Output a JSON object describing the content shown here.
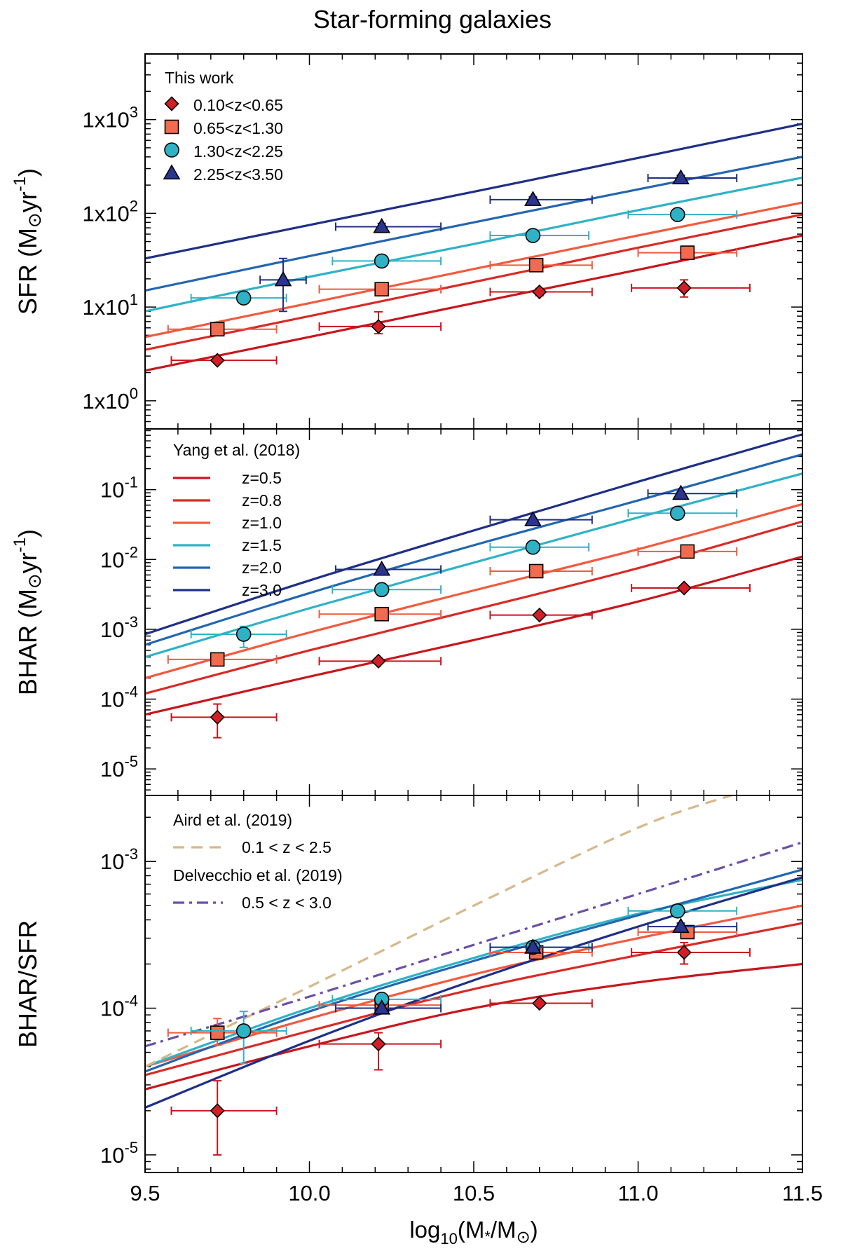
{
  "figure": {
    "title": "Star-forming galaxies",
    "xlabel_prefix": "log",
    "xlabel_sub": "10",
    "xlabel_rest": "(M",
    "xlabel_star": "*",
    "xlabel_mid": "/M",
    "xlabel_close": ")",
    "sun_symbol": "⊙",
    "colors": {
      "z1": "#c8161d",
      "z2": "#d92a26",
      "z3": "#f25a3e",
      "z4": "#2fb2c6",
      "z5": "#2266b0",
      "z6": "#1f2f86",
      "aird": "#d6b88a",
      "delvecchio": "#6a4fa8",
      "marker_z1": "#d21f26",
      "marker_z2": "#f26b4f",
      "marker_z3": "#2fb2c6",
      "marker_z4": "#2a3590"
    }
  },
  "chart_data": [
    {
      "type": "scatter",
      "panel": "top",
      "ylabel_main": "SFR (M",
      "ylabel_units": "yr",
      "ylabel_exp": "-1",
      "ylabel_close": ")",
      "xlim": [
        9.5,
        11.5
      ],
      "ylim_log10": [
        -0.3,
        3.7
      ],
      "yticks_log10": [
        0,
        1,
        2,
        3
      ],
      "ytick_labels": [
        {
          "base": "1x10",
          "exp": "0"
        },
        {
          "base": "1x10",
          "exp": "1"
        },
        {
          "base": "1x10",
          "exp": "2"
        },
        {
          "base": "1x10",
          "exp": "3"
        }
      ],
      "legend": {
        "title": "This work",
        "entries": [
          "0.10<z<0.65",
          "0.65<z<1.30",
          "1.30<z<2.25",
          "2.25<z<3.50"
        ]
      },
      "points": [
        {
          "series": "0.10<z<0.65",
          "marker": "diamond",
          "color_key": "marker_z1",
          "ecolor_key": "z1",
          "x": [
            9.72,
            10.21,
            10.7,
            11.14
          ],
          "xlo": [
            9.58,
            10.03,
            10.55,
            10.98
          ],
          "xhi": [
            9.9,
            10.4,
            10.86,
            11.34
          ],
          "y": [
            2.7,
            6.2,
            14.5,
            16.0
          ],
          "ylo": [
            2.55,
            5.2,
            13.2,
            12.8
          ],
          "yhi": [
            2.9,
            8.9,
            15.8,
            19.5
          ]
        },
        {
          "series": "0.65<z<1.30",
          "marker": "square",
          "color_key": "marker_z2",
          "ecolor_key": "z3",
          "x": [
            9.72,
            10.22,
            10.69,
            11.15
          ],
          "xlo": [
            9.57,
            10.03,
            10.55,
            11.0
          ],
          "xhi": [
            9.9,
            10.4,
            10.86,
            11.3
          ],
          "y": [
            5.8,
            15.5,
            28.0,
            38.0
          ],
          "ylo": [
            5.3,
            14.0,
            25.5,
            34.0
          ],
          "yhi": [
            6.3,
            17.0,
            30.5,
            42.0
          ]
        },
        {
          "series": "1.30<z<2.25",
          "marker": "circle",
          "color_key": "marker_z3",
          "ecolor_key": "z4",
          "x": [
            9.8,
            10.22,
            10.68,
            11.12
          ],
          "xlo": [
            9.64,
            10.07,
            10.55,
            10.97
          ],
          "xhi": [
            9.93,
            10.4,
            10.85,
            11.3
          ],
          "y": [
            12.5,
            31.0,
            58.0,
            97.0
          ],
          "ylo": [
            11.5,
            28.5,
            53.0,
            90.0
          ],
          "yhi": [
            13.5,
            33.5,
            63.0,
            104.0
          ]
        },
        {
          "series": "2.25<z<3.50",
          "marker": "triangle",
          "color_key": "marker_z4",
          "ecolor_key": "z6",
          "x": [
            9.92,
            10.22,
            10.68,
            11.13
          ],
          "xlo": [
            9.85,
            10.08,
            10.55,
            11.03
          ],
          "xhi": [
            9.99,
            10.4,
            10.86,
            11.3
          ],
          "y": [
            19.5,
            72.0,
            140.0,
            238.0
          ],
          "ylo": [
            9.0,
            66.0,
            130.0,
            222.0
          ],
          "yhi": [
            33.0,
            78.0,
            150.0,
            255.0
          ]
        }
      ],
      "lines": [
        {
          "color_key": "z1",
          "x": [
            9.5,
            10.0,
            10.5,
            11.0,
            11.5
          ],
          "y": [
            2.1,
            4.8,
            11.0,
            25.0,
            58.0
          ]
        },
        {
          "color_key": "z2",
          "x": [
            9.5,
            10.0,
            10.5,
            11.0,
            11.5
          ],
          "y": [
            3.5,
            8.0,
            18.5,
            43.0,
            97.0
          ]
        },
        {
          "color_key": "z3",
          "x": [
            9.5,
            10.0,
            10.5,
            11.0,
            11.5
          ],
          "y": [
            4.8,
            11.0,
            25.5,
            58.0,
            130.0
          ]
        },
        {
          "color_key": "z4",
          "x": [
            9.5,
            10.0,
            10.5,
            11.0,
            11.5
          ],
          "y": [
            9.0,
            21.0,
            47.0,
            108.0,
            240.0
          ]
        },
        {
          "color_key": "z5",
          "x": [
            9.5,
            10.0,
            10.5,
            11.0,
            11.5
          ],
          "y": [
            15.0,
            35.0,
            80.0,
            180.0,
            400.0
          ]
        },
        {
          "color_key": "z6",
          "x": [
            9.5,
            10.0,
            10.5,
            11.0,
            11.5
          ],
          "y": [
            33.0,
            75.0,
            170.0,
            390.0,
            900.0
          ]
        }
      ]
    },
    {
      "type": "scatter",
      "panel": "middle",
      "ylabel_main": "BHAR (M",
      "ylabel_units": "yr",
      "ylabel_exp": "-1",
      "ylabel_close": ")",
      "xlim": [
        9.5,
        11.5
      ],
      "ylim_log10": [
        -5.38,
        -0.13
      ],
      "yticks_log10": [
        -5,
        -4,
        -3,
        -2,
        -1
      ],
      "ytick_labels": [
        {
          "base": "10",
          "exp": "-5"
        },
        {
          "base": "10",
          "exp": "-4"
        },
        {
          "base": "10",
          "exp": "-3"
        },
        {
          "base": "10",
          "exp": "-2"
        },
        {
          "base": "10",
          "exp": "-1"
        }
      ],
      "legend": {
        "title": "Yang et al. (2018)",
        "entries": [
          "z=0.5",
          "z=0.8",
          "z=1.0",
          "z=1.5",
          "z=2.0",
          "z=3.0"
        ]
      },
      "points": [
        {
          "series": "0.10<z<0.65",
          "marker": "diamond",
          "color_key": "marker_z1",
          "ecolor_key": "z1",
          "x": [
            9.72,
            10.21,
            10.7,
            11.14
          ],
          "xlo": [
            9.58,
            10.03,
            10.55,
            10.98
          ],
          "xhi": [
            9.9,
            10.4,
            10.86,
            11.34
          ],
          "y": [
            5.5e-05,
            0.00035,
            0.0016,
            0.0039
          ],
          "ylo": [
            2.8e-05,
            0.00033,
            0.0015,
            0.0037
          ],
          "yhi": [
            8.5e-05,
            0.00037,
            0.0017,
            0.0041
          ]
        },
        {
          "series": "0.65<z<1.30",
          "marker": "square",
          "color_key": "marker_z2",
          "ecolor_key": "z3",
          "x": [
            9.72,
            10.22,
            10.69,
            11.15
          ],
          "xlo": [
            9.57,
            10.03,
            10.55,
            11.0
          ],
          "xhi": [
            9.9,
            10.4,
            10.86,
            11.3
          ],
          "y": [
            0.00037,
            0.00165,
            0.0068,
            0.013
          ],
          "ylo": [
            0.00035,
            0.00155,
            0.0064,
            0.0123
          ],
          "yhi": [
            0.00039,
            0.00175,
            0.0072,
            0.0137
          ]
        },
        {
          "series": "1.30<z<2.25",
          "marker": "circle",
          "color_key": "marker_z3",
          "ecolor_key": "z4",
          "x": [
            9.8,
            10.22,
            10.68,
            11.12
          ],
          "xlo": [
            9.64,
            10.07,
            10.55,
            10.97
          ],
          "xhi": [
            9.93,
            10.4,
            10.85,
            11.3
          ],
          "y": [
            0.00085,
            0.0037,
            0.015,
            0.046
          ],
          "ylo": [
            0.00055,
            0.0035,
            0.0142,
            0.0435
          ],
          "yhi": [
            0.0011,
            0.0039,
            0.0158,
            0.0485
          ]
        },
        {
          "series": "2.25<z<3.50",
          "marker": "triangle",
          "color_key": "marker_z4",
          "ecolor_key": "z6",
          "x": [
            10.22,
            10.68,
            11.13
          ],
          "xlo": [
            10.08,
            10.55,
            11.03
          ],
          "xhi": [
            10.4,
            10.86,
            11.3
          ],
          "y": [
            0.0072,
            0.037,
            0.088
          ],
          "ylo": [
            0.0068,
            0.035,
            0.083
          ],
          "yhi": [
            0.0076,
            0.039,
            0.093
          ]
        }
      ],
      "lines": [
        {
          "color_key": "z1",
          "x": [
            9.5,
            10.0,
            10.5,
            11.0,
            11.5
          ],
          "y": [
            6e-05,
            0.00021,
            0.0007,
            0.0025,
            0.011
          ]
        },
        {
          "color_key": "z2",
          "x": [
            9.5,
            10.0,
            10.5,
            11.0,
            11.5
          ],
          "y": [
            0.00012,
            0.0005,
            0.0019,
            0.0075,
            0.035
          ]
        },
        {
          "color_key": "z3",
          "x": [
            9.5,
            10.0,
            10.5,
            11.0,
            11.5
          ],
          "y": [
            0.0002,
            0.0009,
            0.0036,
            0.014,
            0.062
          ]
        },
        {
          "color_key": "z4",
          "x": [
            9.5,
            10.0,
            10.5,
            11.0,
            11.5
          ],
          "y": [
            0.0004,
            0.002,
            0.009,
            0.04,
            0.17
          ]
        },
        {
          "color_key": "z5",
          "x": [
            9.5,
            10.0,
            10.5,
            11.0,
            11.5
          ],
          "y": [
            0.0006,
            0.0033,
            0.016,
            0.07,
            0.32
          ]
        },
        {
          "color_key": "z6",
          "x": [
            9.5,
            10.0,
            10.5,
            11.0,
            11.5
          ],
          "y": [
            0.00085,
            0.005,
            0.026,
            0.13,
            0.62
          ]
        }
      ]
    },
    {
      "type": "scatter",
      "panel": "bottom",
      "ylabel_main": "BHAR/SFR",
      "xlim": [
        9.5,
        11.5
      ],
      "ylim_log10": [
        -5.12,
        -2.55
      ],
      "yticks_log10": [
        -5,
        -4,
        -3
      ],
      "ytick_labels": [
        {
          "base": "10",
          "exp": "-5"
        },
        {
          "base": "10",
          "exp": "-4"
        },
        {
          "base": "10",
          "exp": "-3"
        }
      ],
      "xticks": [
        9.5,
        10.0,
        10.5,
        11.0,
        11.5
      ],
      "xtick_labels": [
        "9.5",
        "10.0",
        "10.5",
        "11.0",
        "11.5"
      ],
      "legend": {
        "aird_title": "Aird et al. (2019)",
        "aird_entry": "0.1 < z < 2.5",
        "delvecchio_title": "Delvecchio et al. (2019)",
        "delvecchio_entry": "0.5 < z < 3.0"
      },
      "points": [
        {
          "series": "0.10<z<0.65",
          "marker": "diamond",
          "color_key": "marker_z1",
          "ecolor_key": "z1",
          "x": [
            9.72,
            10.21,
            10.7,
            11.14
          ],
          "xlo": [
            9.58,
            10.03,
            10.55,
            10.98
          ],
          "xhi": [
            9.9,
            10.4,
            10.86,
            11.34
          ],
          "y": [
            2e-05,
            5.7e-05,
            0.000108,
            0.00024
          ],
          "ylo": [
            1e-05,
            3.8e-05,
            0.000103,
            0.0002
          ],
          "yhi": [
            3.2e-05,
            6.8e-05,
            0.000113,
            0.00028
          ]
        },
        {
          "series": "0.65<z<1.30",
          "marker": "square",
          "color_key": "marker_z2",
          "ecolor_key": "z3",
          "x": [
            9.72,
            10.22,
            10.69,
            11.15
          ],
          "xlo": [
            9.57,
            10.03,
            10.55,
            11.0
          ],
          "xhi": [
            9.9,
            10.4,
            10.86,
            11.3
          ],
          "y": [
            6.8e-05,
            0.000105,
            0.00024,
            0.00033
          ],
          "ylo": [
            5.6e-05,
            9.7e-05,
            0.000225,
            0.00031
          ],
          "yhi": [
            8.5e-05,
            0.000113,
            0.000255,
            0.00035
          ]
        },
        {
          "series": "1.30<z<2.25",
          "marker": "circle",
          "color_key": "marker_z3",
          "ecolor_key": "z4",
          "x": [
            9.8,
            10.22,
            10.68,
            11.12
          ],
          "xlo": [
            9.64,
            10.07,
            10.55,
            10.97
          ],
          "xhi": [
            9.93,
            10.4,
            10.85,
            11.3
          ],
          "y": [
            7e-05,
            0.000115,
            0.00026,
            0.00046
          ],
          "ylo": [
            4.2e-05,
            0.000107,
            0.000245,
            0.00043
          ],
          "yhi": [
            9.5e-05,
            0.000123,
            0.000275,
            0.00049
          ]
        },
        {
          "series": "2.25<z<3.50",
          "marker": "triangle",
          "color_key": "marker_z4",
          "ecolor_key": "z6",
          "x": [
            10.22,
            10.68,
            11.13
          ],
          "xlo": [
            10.08,
            10.55,
            11.03
          ],
          "xhi": [
            10.4,
            10.86,
            11.3
          ],
          "y": [
            0.0001,
            0.00026,
            0.00036
          ],
          "ylo": [
            9.4e-05,
            0.000245,
            0.00034
          ],
          "yhi": [
            0.000106,
            0.000275,
            0.00038
          ]
        }
      ],
      "lines": [
        {
          "color_key": "z1",
          "x": [
            9.5,
            10.0,
            10.5,
            11.0,
            11.5
          ],
          "y": [
            2.8e-05,
            5.5e-05,
            0.0001,
            0.00015,
            0.0002
          ]
        },
        {
          "color_key": "z2",
          "x": [
            9.5,
            10.0,
            10.5,
            11.0,
            11.5
          ],
          "y": [
            3.5e-05,
            7e-05,
            0.000135,
            0.00023,
            0.00038
          ]
        },
        {
          "color_key": "z3",
          "x": [
            9.5,
            10.0,
            10.5,
            11.0,
            11.5
          ],
          "y": [
            4e-05,
            8.5e-05,
            0.00017,
            0.0003,
            0.0005
          ]
        },
        {
          "color_key": "z4",
          "x": [
            9.5,
            10.0,
            10.5,
            11.0,
            11.5
          ],
          "y": [
            4e-05,
            0.0001,
            0.00022,
            0.00044,
            0.00075
          ]
        },
        {
          "color_key": "z5",
          "x": [
            9.5,
            10.0,
            10.5,
            11.0,
            11.5
          ],
          "y": [
            3.7e-05,
            9.5e-05,
            0.00021,
            0.00043,
            0.00088
          ]
        },
        {
          "color_key": "z6",
          "x": [
            9.5,
            10.0,
            10.5,
            11.0,
            11.5
          ],
          "y": [
            2.1e-05,
            6e-05,
            0.000155,
            0.00036,
            0.00078
          ]
        },
        {
          "color_key": "aird",
          "dash": "dashed",
          "x": [
            9.5,
            10.0,
            10.5,
            11.0,
            11.3
          ],
          "y": [
            4e-05,
            0.00014,
            0.0005,
            0.0017,
            0.0029
          ]
        },
        {
          "color_key": "delvecchio",
          "dash": "dashdot",
          "x": [
            9.5,
            10.0,
            10.5,
            11.0,
            11.5
          ],
          "y": [
            5.5e-05,
            0.00012,
            0.00027,
            0.0006,
            0.00135
          ]
        }
      ]
    }
  ]
}
